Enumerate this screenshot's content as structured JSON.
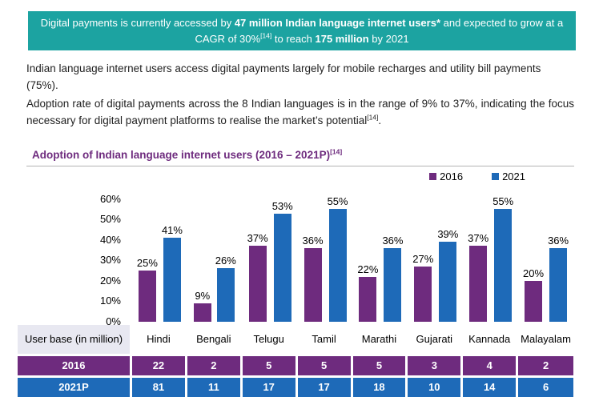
{
  "banner": {
    "part1": "Digital payments is currently accessed by ",
    "bold1": "47 million Indian language internet users*",
    "part2": " and expected to grow at a CAGR of 30%",
    "sup1": "[14]",
    "part3": " to reach ",
    "bold2": "175 million",
    "part4": " by 2021"
  },
  "body": {
    "para1": "Indian language internet users access digital payments largely for mobile recharges and utility bill payments (75%).",
    "para2": "Adoption rate of digital payments across the 8 Indian languages is in the range of 9% to 37%, indicating the focus necessary for digital payment platforms to realise the market’s potential",
    "para2_sup": "[14]",
    "para2_end": "."
  },
  "section": {
    "title": "Adoption of Indian language internet users (2016 – 2021P)",
    "title_sup": "[14]"
  },
  "chart_data": {
    "type": "bar",
    "title": "Adoption of Indian language internet users (2016 – 2021P)[14]",
    "categories": [
      "Hindi",
      "Bengali",
      "Telugu",
      "Tamil",
      "Marathi",
      "Gujarati",
      "Kannada",
      "Malayalam"
    ],
    "series": [
      {
        "name": "2016",
        "color": "#6E2B7E",
        "values": [
          25,
          9,
          37,
          36,
          22,
          27,
          37,
          20
        ],
        "unit": "%"
      },
      {
        "name": "2021",
        "color": "#1E6AB8",
        "values": [
          41,
          26,
          53,
          55,
          36,
          39,
          55,
          36
        ],
        "unit": "%"
      }
    ],
    "ylim": [
      0,
      60
    ],
    "yticks": [
      0,
      10,
      20,
      30,
      40,
      50,
      60
    ],
    "ytick_suffix": "%",
    "grid": false,
    "legend_position": "top-right",
    "value_labels": true
  },
  "table": {
    "row_label_header": "User base (in million)",
    "columns": [
      "Hindi",
      "Bengali",
      "Telugu",
      "Tamil",
      "Marathi",
      "Gujarati",
      "Kannada",
      "Malayalam"
    ],
    "rows": [
      {
        "label": "2016",
        "color": "#6E2B7E",
        "values": [
          22,
          2,
          5,
          5,
          5,
          3,
          4,
          2
        ]
      },
      {
        "label": "2021P",
        "color": "#1E6AB8",
        "values": [
          81,
          11,
          17,
          17,
          18,
          10,
          14,
          6
        ]
      }
    ]
  },
  "colors": {
    "banner_background": "#1CA3A1",
    "title_text": "#6E2B7E",
    "series_2016": "#6E2B7E",
    "series_2021": "#1E6AB8",
    "header_cell_background": "#E8E8F1"
  }
}
